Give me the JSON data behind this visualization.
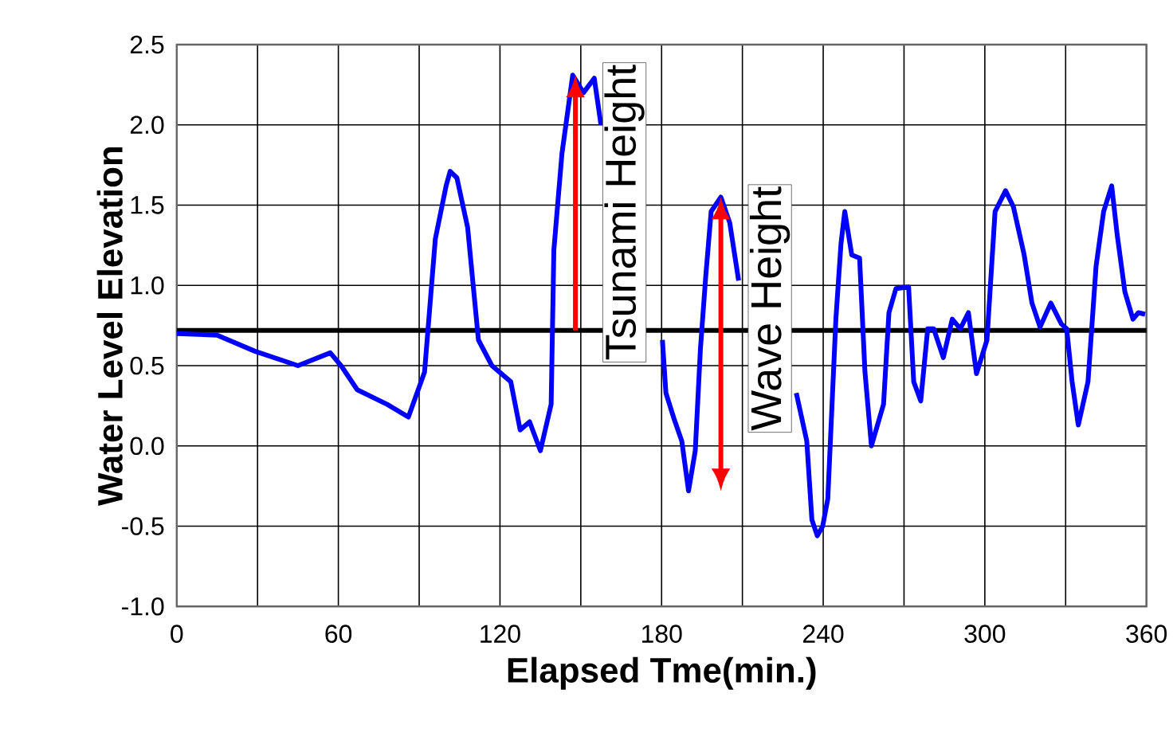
{
  "chart_data": {
    "type": "line",
    "xlabel": "Elapsed Tme(min.)",
    "ylabel": "Water Level Elevation",
    "xlim": [
      0,
      360
    ],
    "ylim": [
      -1.0,
      2.5
    ],
    "xticks": [
      0,
      {
        "value": 30,
        "label": null
      },
      60,
      {
        "value": 90,
        "label": null
      },
      120,
      {
        "value": 150,
        "label": null
      },
      180,
      {
        "value": 210,
        "label": null
      },
      240,
      {
        "value": 270,
        "label": null
      },
      300,
      {
        "value": 330,
        "label": null
      },
      360
    ],
    "yticks": [
      {
        "value": -1.0,
        "label": "-1.0"
      },
      {
        "value": -0.5,
        "label": "-0.5"
      },
      {
        "value": 0.0,
        "label": "0.0"
      },
      {
        "value": 0.5,
        "label": "0.5"
      },
      {
        "value": 1.0,
        "label": "1.0"
      },
      {
        "value": 1.5,
        "label": "1.5"
      },
      {
        "value": 2.0,
        "label": "2.0"
      },
      {
        "value": 2.5,
        "label": "2.5"
      }
    ],
    "grid": true,
    "marker": "none",
    "line_style": "solid",
    "ref_lines": [
      {
        "axis": "y",
        "value": 0.72,
        "color": "#000000"
      }
    ],
    "annotations": [
      {
        "text": "Tsunami Height",
        "x": 148,
        "y": 2.31
      },
      {
        "text": "Wave Height",
        "x": 202,
        "y": 1.55
      }
    ],
    "series": [
      {
        "color": "#0000ff",
        "x": [
          0,
          15,
          29,
          45,
          57,
          61,
          67,
          78,
          86,
          92,
          96,
          100,
          101.5,
          104,
          108,
          112,
          117,
          124,
          127.5,
          131,
          135,
          139,
          140,
          143,
          147,
          151,
          155,
          157.5,
          170,
          180.3,
          181.6,
          184.6,
          187.5,
          190,
          192.5,
          194.4,
          196.4,
          198.4,
          202,
          205.3,
          208.6,
          220,
          230,
          233.9,
          235.8,
          237.8,
          239.8,
          241.7,
          244.7,
          246.6,
          248,
          250.6,
          253.5,
          255.5,
          257.9,
          262.4,
          264.4,
          267,
          271.7,
          273.6,
          276.2,
          278.8,
          281,
          284.6,
          287.9,
          290.9,
          293.9,
          296.9,
          300.8,
          303.8,
          307.7,
          310.6,
          314.6,
          317.5,
          320.5,
          324.5,
          328.4,
          330.4,
          332.4,
          334.7,
          338.3,
          341.3,
          344.1,
          347.1,
          349.1,
          352,
          355,
          357,
          359.5
        ],
        "values": [
          0.7,
          0.69,
          0.59,
          0.5,
          0.58,
          0.5,
          0.35,
          0.26,
          0.18,
          0.46,
          1.29,
          1.62,
          1.71,
          1.67,
          1.36,
          0.66,
          0.5,
          0.4,
          0.1,
          0.15,
          -0.03,
          0.26,
          1.22,
          1.82,
          2.31,
          2.2,
          2.29,
          2.0,
          null,
          0.66,
          0.33,
          0.17,
          0.03,
          -0.28,
          -0.03,
          0.6,
          1.06,
          1.46,
          1.55,
          1.39,
          1.03,
          null,
          0.33,
          0.03,
          -0.46,
          -0.56,
          -0.5,
          -0.33,
          0.79,
          1.26,
          1.46,
          1.19,
          1.17,
          0.46,
          0.0,
          0.26,
          0.83,
          0.98,
          0.99,
          0.4,
          0.28,
          0.73,
          0.73,
          0.55,
          0.79,
          0.73,
          0.83,
          0.45,
          0.66,
          1.46,
          1.59,
          1.49,
          1.19,
          0.89,
          0.74,
          0.89,
          0.76,
          0.73,
          0.4,
          0.13,
          0.4,
          1.12,
          1.46,
          1.62,
          1.32,
          0.96,
          0.79,
          0.83,
          0.82
        ]
      }
    ]
  }
}
